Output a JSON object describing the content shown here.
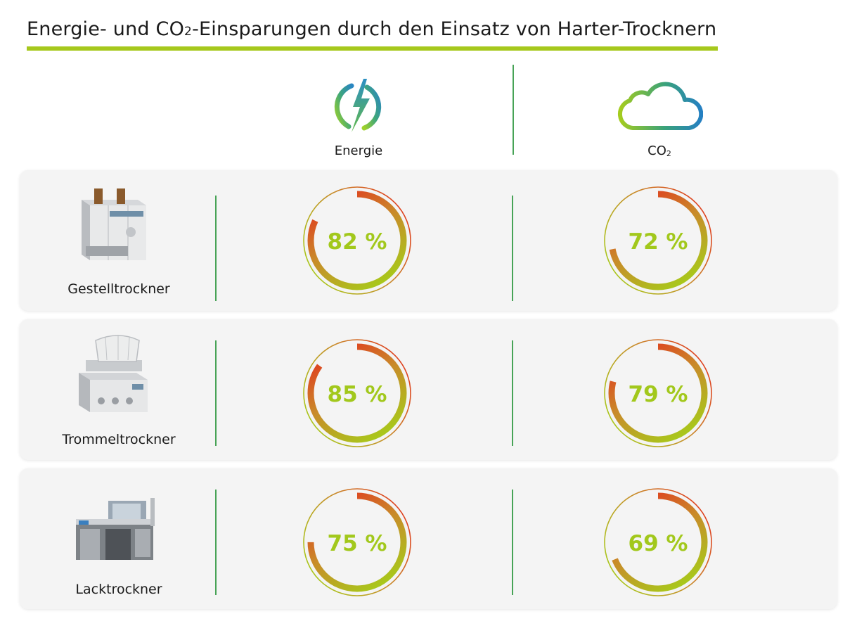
{
  "title": {
    "before": "Energie- und CO",
    "subscript": "2",
    "after": "-Einsparungen durch den Einsatz von Harter-Trocknern"
  },
  "columns": {
    "energy": {
      "label": "Energie",
      "icon": "lightning-bolt-icon"
    },
    "co2": {
      "label": "CO",
      "label_sub": "2",
      "icon": "cloud-icon"
    }
  },
  "colors": {
    "accent_green": "#a6c81c",
    "divider_green": "#47a356",
    "gauge_start": "#a6cd1a",
    "gauge_end": "#e2361e",
    "percent_text": "#a2c81c"
  },
  "chart_data": {
    "type": "radial-gauge",
    "categories": [
      "Gestelltrockner",
      "Trommeltrockner",
      "Lacktrockner"
    ],
    "series": [
      {
        "name": "Energie",
        "values": [
          82,
          85,
          75
        ],
        "labels": [
          "82 %",
          "85 %",
          "75 %"
        ]
      },
      {
        "name": "CO2",
        "values": [
          72,
          79,
          69
        ],
        "labels": [
          "72 %",
          "79 %",
          "69 %"
        ]
      }
    ],
    "unit": "%",
    "range": [
      0,
      100
    ]
  }
}
